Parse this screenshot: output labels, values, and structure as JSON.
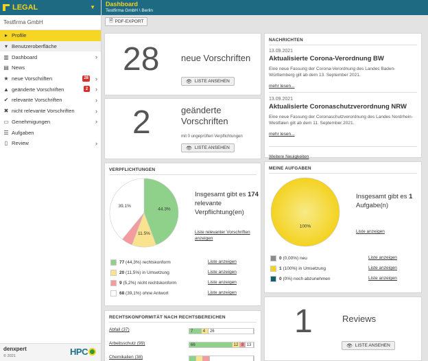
{
  "app": {
    "brand": "LEGAL",
    "company": "Testfirma GmbH"
  },
  "header": {
    "title": "Dashboard",
    "breadcrumb": "Testfirma GmbH \\ Berlin"
  },
  "toolbar": {
    "pdf_label": "PDF-EXPORT"
  },
  "sidebar": {
    "items": [
      {
        "label": "Profile",
        "icon": "caret-right-icon",
        "active": true
      },
      {
        "label": "Benutzeroberfläche",
        "icon": "caret-down-icon"
      },
      {
        "label": "Dashboard",
        "icon": "dashboard-icon",
        "chev": true
      },
      {
        "label": "News",
        "icon": "news-icon"
      },
      {
        "label": "neue Vorschriften",
        "icon": "star-icon",
        "badge": "28",
        "chev": true
      },
      {
        "label": "geänderte Vorschriften",
        "icon": "warning-icon",
        "badge": "2",
        "chev": true
      },
      {
        "label": "relevante Vorschriften",
        "icon": "check-circle-icon",
        "chev": true
      },
      {
        "label": "nicht relevante Vorschriften",
        "icon": "x-circle-icon",
        "chev": true
      },
      {
        "label": "Genehmigungen",
        "icon": "permit-icon",
        "chev": true
      },
      {
        "label": "Aufgaben",
        "icon": "tasks-icon"
      },
      {
        "label": "Review",
        "icon": "clipboard-icon",
        "chev": true
      }
    ],
    "footer": {
      "brand": "denxpert",
      "copy": "© 2021",
      "partner": "HPC"
    }
  },
  "cards": {
    "neue": {
      "count": "28",
      "label": "neue Vorschriften",
      "button": "LISTE ANSEHEN"
    },
    "geaendert": {
      "count": "2",
      "label": "geänderte Vorschriften",
      "note": "mit 0 ungeprüften Verpflichtungen",
      "button": "LISTE ANSEHEN"
    },
    "reviews": {
      "count": "1",
      "label": "Reviews",
      "button": "LISTE ANSEHEN"
    }
  },
  "news": {
    "title": "NACHRICHTEN",
    "items": [
      {
        "date": "13.09.2021",
        "title": "Aktualisierte Corona-Verordnung BW",
        "body": "Eine neue Fassung der Corona-Verordnung des Landes Baden-Württemberg gilt ab dem 13. September 2021.",
        "more": "mehr lesen..."
      },
      {
        "date": "13.09.2021",
        "title": "Aktualisierte Coronaschutzverordnung NRW",
        "body": "Eine neue Fassung der Coronaschutzverordnung des Landes Nordrhein-Westfalen gilt ab dem 11. September 2021.",
        "more": "mehr lesen..."
      }
    ],
    "footer_link": "Weitere Neuigkeiten"
  },
  "verpflichtungen": {
    "title": "VERPFLICHTUNGEN",
    "summary_pre": "Insgesamt gibt es",
    "summary_num": "174",
    "summary_post": "relevante Verpflichtung(en)",
    "link": "Liste relevanter Vorschriften anzeigen",
    "legend": [
      {
        "count": "77",
        "pct": "(44,3%)",
        "label": "rechtskonform",
        "color": "#8fd18a",
        "link": "Liste anzeigen"
      },
      {
        "count": "20",
        "pct": "(11,5%)",
        "label": "in Umsetzung",
        "color": "#f9e38f",
        "link": "Liste anzeigen"
      },
      {
        "count": "9",
        "pct": "(5,2%)",
        "label": "nicht rechtskonform",
        "color": "#f49ba0",
        "link": "Liste anzeigen"
      },
      {
        "count": "68",
        "pct": "(39,1%)",
        "label": "ohne Antwort",
        "color": "#ffffff",
        "link": "Liste anzeigen"
      }
    ]
  },
  "aufgaben": {
    "title": "MEINE AUFGABEN",
    "summary_pre": "Insgesamt gibt es",
    "summary_num": "1",
    "summary_post": "Aufgabe(n)",
    "link": "Liste anzeigen",
    "legend": [
      {
        "count": "0",
        "pct": "(0,00%)",
        "label": "neu",
        "color": "#8c8c8c",
        "link": "Liste anzeigen"
      },
      {
        "count": "1",
        "pct": "(100%)",
        "label": "in Umsetzung",
        "color": "#f4d21f",
        "link": "Liste anzeigen"
      },
      {
        "count": "0",
        "pct": "(0%)",
        "label": "noch abzunehmen",
        "color": "#115f6e",
        "link": "Liste anzeigen"
      }
    ]
  },
  "rechtskonformitaet": {
    "title": "RECHTSKONFORMITÄT NACH RECHTSBEREICHEN",
    "rows": [
      {
        "label": "Abfall (37)",
        "segments": [
          {
            "v": "7",
            "c": "#8fd18a",
            "w": 7
          },
          {
            "v": "4",
            "c": "#f9e38f",
            "w": 4
          },
          {
            "v": "26",
            "c": "#ffffff",
            "w": 26
          }
        ]
      },
      {
        "label": "Arbeitsschutz (99)",
        "segments": [
          {
            "v": "66",
            "c": "#8fd18a",
            "w": 66
          },
          {
            "v": "12",
            "c": "#f9e38f",
            "w": 12
          },
          {
            "v": "8",
            "c": "#f49ba0",
            "w": 8
          },
          {
            "v": "13",
            "c": "#ffffff",
            "w": 13
          }
        ]
      },
      {
        "label": "Chemikalien (38)",
        "segments": [
          {
            "v": "",
            "c": "#8fd18a",
            "w": 4
          },
          {
            "v": "",
            "c": "#f9e38f",
            "w": 4
          },
          {
            "v": "",
            "c": "#f49ba0",
            "w": 4
          },
          {
            "v": "",
            "c": "#ffffff",
            "w": 26
          }
        ]
      }
    ]
  },
  "chart_data": [
    {
      "type": "pie",
      "title": "VERPFLICHTUNGEN",
      "categories": [
        "rechtskonform",
        "in Umsetzung",
        "nicht rechtskonform",
        "ohne Antwort"
      ],
      "values": [
        44.3,
        11.5,
        5.2,
        39.1
      ],
      "colors": [
        "#8fd18a",
        "#f9e38f",
        "#f49ba0",
        "#ffffff"
      ],
      "data_labels": [
        "44.3%",
        "11.5%",
        "",
        "39.1%"
      ]
    },
    {
      "type": "pie",
      "title": "MEINE AUFGABEN",
      "categories": [
        "neu",
        "in Umsetzung",
        "noch abzunehmen"
      ],
      "values": [
        0,
        100,
        0
      ],
      "colors": [
        "#8c8c8c",
        "#f4d21f",
        "#115f6e"
      ],
      "data_labels": [
        "",
        "100%",
        ""
      ]
    }
  ]
}
